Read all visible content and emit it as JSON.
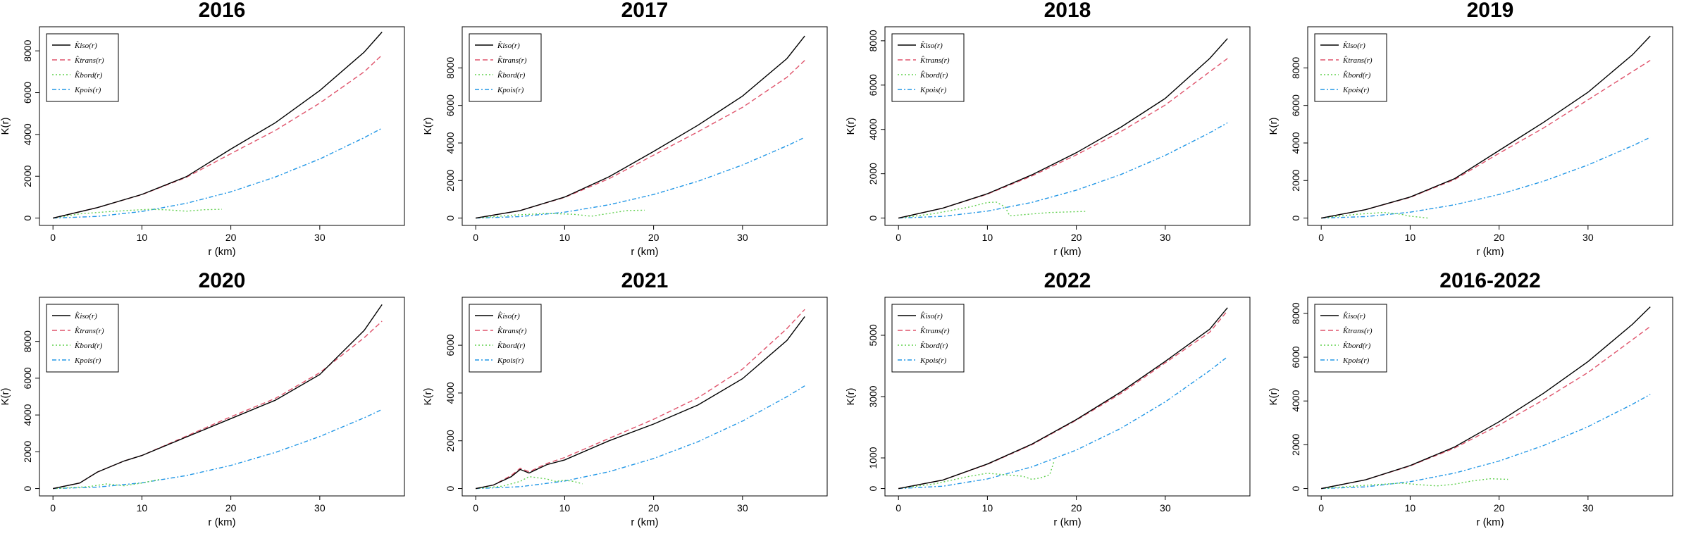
{
  "figure": {
    "xlabel": "r (km)",
    "ylabel": "K(r)",
    "legend_labels": [
      "K̂iso(r)",
      "K̂trans(r)",
      "K̂bord(r)",
      "Kpois(r)"
    ],
    "colors": {
      "iso": "#000000",
      "trans": "#df536b",
      "bord": "#61d04f",
      "pois": "#2297e6"
    }
  },
  "chart_data": [
    {
      "type": "line",
      "title": "2016",
      "xlim": [
        0,
        38
      ],
      "ylim": [
        0,
        8800
      ],
      "xticks": [
        0,
        10,
        20,
        30
      ],
      "yticks": [
        0,
        2000,
        4000,
        6000,
        8000
      ],
      "legend": "top-left",
      "series": [
        {
          "name": "K̂iso(r)",
          "style": "solid",
          "x": [
            0,
            5,
            10,
            15,
            20,
            25,
            30,
            35,
            37
          ],
          "y": [
            0,
            500,
            1130,
            1980,
            3300,
            4560,
            6100,
            7940,
            8900
          ]
        },
        {
          "name": "K̂trans(r)",
          "style": "dashed",
          "x": [
            0,
            5,
            10,
            15,
            20,
            25,
            30,
            35,
            37
          ],
          "y": [
            0,
            500,
            1120,
            1950,
            3080,
            4190,
            5500,
            7000,
            7800
          ]
        },
        {
          "name": "K̂bord(r)",
          "style": "dotted",
          "x": [
            0,
            3,
            6,
            9,
            11,
            13,
            15,
            17,
            19
          ],
          "y": [
            0,
            200,
            300,
            380,
            420,
            390,
            330,
            400,
            420
          ]
        },
        {
          "name": "Kpois(r)",
          "style": "dotdash",
          "x": [
            0,
            5,
            10,
            15,
            20,
            25,
            30,
            35,
            37
          ],
          "y": [
            0,
            78,
            314,
            707,
            1257,
            1963,
            2827,
            3848,
            4300
          ]
        }
      ]
    },
    {
      "type": "line",
      "title": "2017",
      "xlim": [
        0,
        38
      ],
      "ylim": [
        0,
        9800
      ],
      "xticks": [
        0,
        10,
        20,
        30
      ],
      "yticks": [
        0,
        2000,
        4000,
        6000,
        8000
      ],
      "legend": "top-left",
      "series": [
        {
          "name": "K̂iso(r)",
          "style": "solid",
          "x": [
            0,
            5,
            10,
            15,
            20,
            25,
            30,
            35,
            37
          ],
          "y": [
            0,
            400,
            1120,
            2200,
            3550,
            4950,
            6500,
            8500,
            9700
          ]
        },
        {
          "name": "K̂trans(r)",
          "style": "dashed",
          "x": [
            0,
            5,
            10,
            15,
            20,
            25,
            30,
            35,
            37
          ],
          "y": [
            0,
            400,
            1100,
            2100,
            3350,
            4600,
            5900,
            7500,
            8400
          ]
        },
        {
          "name": "K̂bord(r)",
          "style": "dotted",
          "x": [
            0,
            4,
            8,
            11,
            13,
            15,
            17,
            19
          ],
          "y": [
            0,
            150,
            250,
            200,
            100,
            250,
            400,
            420
          ]
        },
        {
          "name": "Kpois(r)",
          "style": "dotdash",
          "x": [
            0,
            5,
            10,
            15,
            20,
            25,
            30,
            35,
            37
          ],
          "y": [
            0,
            78,
            314,
            707,
            1257,
            1963,
            2827,
            3848,
            4300
          ]
        }
      ]
    },
    {
      "type": "line",
      "title": "2018",
      "xlim": [
        0,
        38
      ],
      "ylim": [
        0,
        8300
      ],
      "xticks": [
        0,
        10,
        20,
        30
      ],
      "yticks": [
        0,
        2000,
        4000,
        6000,
        8000
      ],
      "legend": "top-left",
      "series": [
        {
          "name": "K̂iso(r)",
          "style": "solid",
          "x": [
            0,
            5,
            10,
            15,
            20,
            25,
            30,
            35,
            37
          ],
          "y": [
            0,
            450,
            1100,
            1950,
            2950,
            4100,
            5400,
            7200,
            8100
          ]
        },
        {
          "name": "K̂trans(r)",
          "style": "dashed",
          "x": [
            0,
            5,
            10,
            15,
            20,
            25,
            30,
            35,
            37
          ],
          "y": [
            0,
            450,
            1080,
            1900,
            2850,
            3900,
            5100,
            6600,
            7200
          ]
        },
        {
          "name": "K̂bord(r)",
          "style": "dotted",
          "x": [
            0,
            4,
            8,
            10,
            11,
            12,
            12.5,
            14,
            17,
            21
          ],
          "y": [
            0,
            200,
            500,
            700,
            720,
            500,
            100,
            150,
            250,
            300
          ]
        },
        {
          "name": "Kpois(r)",
          "style": "dotdash",
          "x": [
            0,
            5,
            10,
            15,
            20,
            25,
            30,
            35,
            37
          ],
          "y": [
            0,
            78,
            314,
            707,
            1257,
            1963,
            2827,
            3848,
            4300
          ]
        }
      ]
    },
    {
      "type": "line",
      "title": "2019",
      "xlim": [
        0,
        38
      ],
      "ylim": [
        0,
        9800
      ],
      "xticks": [
        0,
        10,
        20,
        30
      ],
      "yticks": [
        0,
        2000,
        4000,
        6000,
        8000
      ],
      "legend": "top-left",
      "series": [
        {
          "name": "K̂iso(r)",
          "style": "solid",
          "x": [
            0,
            5,
            10,
            15,
            20,
            25,
            30,
            35,
            37
          ],
          "y": [
            0,
            450,
            1120,
            2100,
            3600,
            5100,
            6700,
            8700,
            9700
          ]
        },
        {
          "name": "K̂trans(r)",
          "style": "dashed",
          "x": [
            0,
            5,
            10,
            15,
            20,
            25,
            30,
            35,
            37
          ],
          "y": [
            0,
            450,
            1100,
            2050,
            3450,
            4800,
            6300,
            7800,
            8400
          ]
        },
        {
          "name": "K̂bord(r)",
          "style": "dotted",
          "x": [
            0,
            4,
            7,
            9,
            10,
            11,
            12
          ],
          "y": [
            0,
            200,
            300,
            200,
            100,
            50,
            0
          ]
        },
        {
          "name": "Kpois(r)",
          "style": "dotdash",
          "x": [
            0,
            5,
            10,
            15,
            20,
            25,
            30,
            35,
            37
          ],
          "y": [
            0,
            78,
            314,
            707,
            1257,
            1963,
            2827,
            3848,
            4300
          ]
        }
      ]
    },
    {
      "type": "line",
      "title": "2020",
      "xlim": [
        0,
        38
      ],
      "ylim": [
        0,
        10000
      ],
      "xticks": [
        0,
        10,
        20,
        30
      ],
      "yticks": [
        0,
        2000,
        4000,
        6000,
        8000
      ],
      "legend": "top-left",
      "series": [
        {
          "name": "K̂iso(r)",
          "style": "solid",
          "x": [
            0,
            3,
            5,
            8,
            10,
            15,
            20,
            25,
            30,
            35,
            37
          ],
          "y": [
            0,
            300,
            900,
            1500,
            1800,
            2800,
            3800,
            4800,
            6200,
            8600,
            10000
          ]
        },
        {
          "name": "K̂trans(r)",
          "style": "dashed",
          "x": [
            0,
            3,
            5,
            8,
            10,
            15,
            20,
            25,
            30,
            35,
            37
          ],
          "y": [
            0,
            300,
            900,
            1500,
            1800,
            2850,
            3900,
            4900,
            6300,
            8200,
            9100
          ]
        },
        {
          "name": "K̂bord(r)",
          "style": "dotted",
          "x": [
            0,
            4,
            6,
            8,
            10,
            12
          ],
          "y": [
            0,
            100,
            250,
            150,
            300,
            500
          ]
        },
        {
          "name": "Kpois(r)",
          "style": "dotdash",
          "x": [
            0,
            5,
            10,
            15,
            20,
            25,
            30,
            35,
            37
          ],
          "y": [
            0,
            78,
            314,
            707,
            1257,
            1963,
            2827,
            3848,
            4300
          ]
        }
      ]
    },
    {
      "type": "line",
      "title": "2021",
      "xlim": [
        0,
        38
      ],
      "ylim": [
        0,
        7700
      ],
      "xticks": [
        0,
        10,
        20,
        30
      ],
      "yticks": [
        0,
        2000,
        4000,
        6000
      ],
      "legend": "top-left",
      "series": [
        {
          "name": "K̂iso(r)",
          "style": "solid",
          "x": [
            0,
            2,
            4,
            5,
            6,
            8,
            10,
            15,
            20,
            25,
            30,
            35,
            37
          ],
          "y": [
            0,
            150,
            500,
            800,
            650,
            1000,
            1200,
            2000,
            2700,
            3500,
            4600,
            6200,
            7200
          ]
        },
        {
          "name": "K̂trans(r)",
          "style": "dashed",
          "x": [
            0,
            2,
            4,
            5,
            6,
            8,
            10,
            15,
            20,
            25,
            30,
            35,
            37
          ],
          "y": [
            0,
            150,
            550,
            850,
            700,
            1050,
            1300,
            2100,
            2900,
            3800,
            5000,
            6700,
            7500
          ]
        },
        {
          "name": "K̂bord(r)",
          "style": "dotted",
          "x": [
            0,
            3,
            5,
            6,
            7,
            8,
            9,
            10,
            11,
            12
          ],
          "y": [
            0,
            100,
            300,
            500,
            450,
            400,
            300,
            350,
            300,
            200
          ]
        },
        {
          "name": "Kpois(r)",
          "style": "dotdash",
          "x": [
            0,
            5,
            10,
            15,
            20,
            25,
            30,
            35,
            37
          ],
          "y": [
            0,
            78,
            314,
            707,
            1257,
            1963,
            2827,
            3848,
            4300
          ]
        }
      ]
    },
    {
      "type": "line",
      "title": "2022",
      "xlim": [
        0,
        38
      ],
      "ylim": [
        0,
        6000
      ],
      "xticks": [
        0,
        10,
        20,
        30
      ],
      "yticks": [
        0,
        1000,
        3000,
        5000
      ],
      "legend": "top-left",
      "series": [
        {
          "name": "K̂iso(r)",
          "style": "solid",
          "x": [
            0,
            5,
            10,
            15,
            20,
            25,
            30,
            35,
            37
          ],
          "y": [
            0,
            280,
            800,
            1450,
            2250,
            3150,
            4150,
            5200,
            5900
          ]
        },
        {
          "name": "K̂trans(r)",
          "style": "dashed",
          "x": [
            0,
            5,
            10,
            15,
            20,
            25,
            30,
            35,
            37
          ],
          "y": [
            0,
            280,
            790,
            1430,
            2230,
            3100,
            4100,
            5100,
            5800
          ]
        },
        {
          "name": "K̂bord(r)",
          "style": "dotted",
          "x": [
            0,
            4,
            8,
            10,
            12,
            14,
            15,
            16,
            17,
            17.5
          ],
          "y": [
            0,
            150,
            400,
            500,
            450,
            400,
            300,
            350,
            450,
            900
          ]
        },
        {
          "name": "Kpois(r)",
          "style": "dotdash",
          "x": [
            0,
            5,
            10,
            15,
            20,
            25,
            30,
            35,
            37
          ],
          "y": [
            0,
            78,
            314,
            707,
            1257,
            1963,
            2827,
            3848,
            4300
          ]
        }
      ]
    },
    {
      "type": "line",
      "title": "2016-2022",
      "xlim": [
        0,
        38
      ],
      "ylim": [
        0,
        8400
      ],
      "xticks": [
        0,
        10,
        20,
        30
      ],
      "yticks": [
        0,
        2000,
        4000,
        6000,
        8000
      ],
      "legend": "top-left",
      "series": [
        {
          "name": "K̂iso(r)",
          "style": "solid",
          "x": [
            0,
            5,
            10,
            15,
            20,
            25,
            30,
            35,
            37
          ],
          "y": [
            0,
            400,
            1050,
            1900,
            3050,
            4350,
            5800,
            7500,
            8300
          ]
        },
        {
          "name": "K̂trans(r)",
          "style": "dashed",
          "x": [
            0,
            5,
            10,
            15,
            20,
            25,
            30,
            35,
            37
          ],
          "y": [
            0,
            400,
            1030,
            1850,
            2900,
            4050,
            5300,
            6800,
            7400
          ]
        },
        {
          "name": "K̂bord(r)",
          "style": "dotted",
          "x": [
            0,
            5,
            9,
            11,
            13,
            15,
            17,
            19,
            21
          ],
          "y": [
            0,
            150,
            250,
            180,
            120,
            200,
            350,
            450,
            420
          ]
        },
        {
          "name": "Kpois(r)",
          "style": "dotdash",
          "x": [
            0,
            5,
            10,
            15,
            20,
            25,
            30,
            35,
            37
          ],
          "y": [
            0,
            78,
            314,
            707,
            1257,
            1963,
            2827,
            3848,
            4300
          ]
        }
      ]
    }
  ]
}
